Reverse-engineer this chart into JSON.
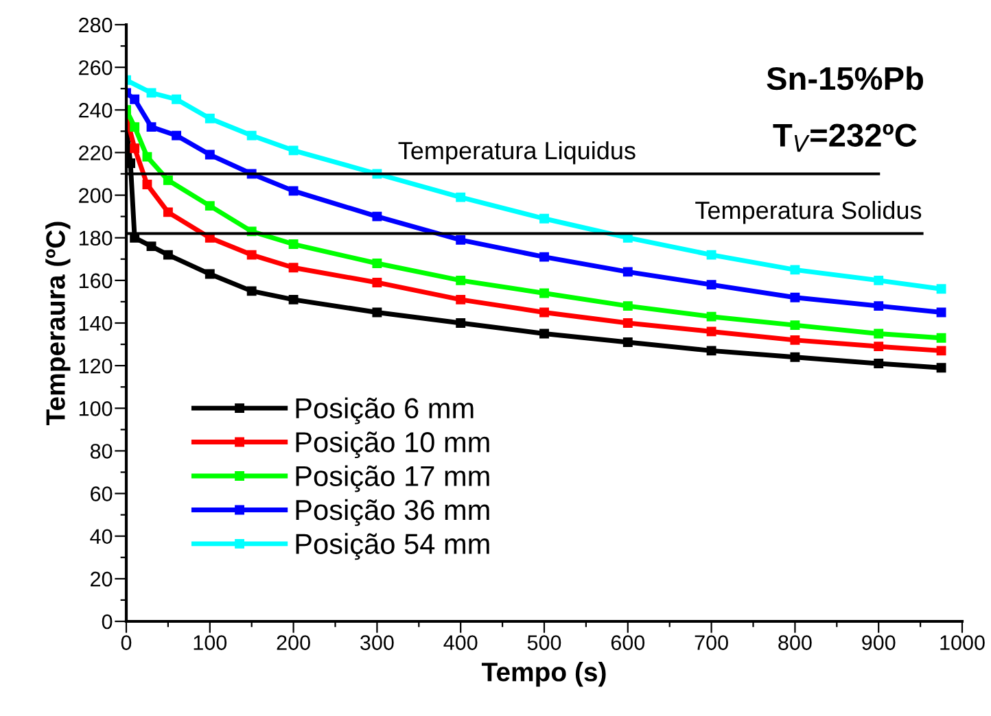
{
  "chart_data": {
    "type": "line",
    "xlabel": "Tempo (s)",
    "ylabel": "Temperaura (ºC)",
    "xlim": [
      0,
      1000
    ],
    "ylim": [
      0,
      280
    ],
    "xticks": [
      0,
      {
        "value": 50,
        "label": null
      },
      100,
      {
        "value": 150,
        "label": null
      },
      200,
      {
        "value": 250,
        "label": null
      },
      300,
      {
        "value": 350,
        "label": null
      },
      400,
      {
        "value": 450,
        "label": null
      },
      500,
      {
        "value": 550,
        "label": null
      },
      600,
      {
        "value": 650,
        "label": null
      },
      700,
      {
        "value": 750,
        "label": null
      },
      800,
      {
        "value": 850,
        "label": null
      },
      900,
      {
        "value": 950,
        "label": null
      },
      1000
    ],
    "yticks": [
      0,
      {
        "value": 10,
        "label": null
      },
      20,
      {
        "value": 30,
        "label": null
      },
      40,
      {
        "value": 50,
        "label": null
      },
      60,
      {
        "value": 70,
        "label": null
      },
      80,
      {
        "value": 90,
        "label": null
      },
      100,
      {
        "value": 110,
        "label": null
      },
      120,
      {
        "value": 130,
        "label": null
      },
      140,
      {
        "value": 150,
        "label": null
      },
      160,
      {
        "value": 170,
        "label": null
      },
      180,
      {
        "value": 190,
        "label": null
      },
      200,
      {
        "value": 210,
        "label": null
      },
      220,
      {
        "value": 230,
        "label": null
      },
      240,
      {
        "value": 250,
        "label": null
      },
      260,
      {
        "value": 270,
        "label": null
      },
      280
    ],
    "grid": false,
    "legend": "bottom left",
    "marker": "square",
    "line_style": "solid",
    "series": [
      {
        "name": "Posição 6 mm",
        "color": "#000000",
        "x": [
          0,
          5,
          10,
          30,
          50,
          100,
          150,
          200,
          300,
          400,
          500,
          600,
          700,
          800,
          900,
          975
        ],
        "values": [
          232,
          215,
          180,
          176,
          172,
          163,
          155,
          151,
          145,
          140,
          135,
          131,
          127,
          124,
          121,
          119
        ]
      },
      {
        "name": "Posição 10 mm",
        "color": "#ff0000",
        "x": [
          0,
          10,
          25,
          50,
          100,
          150,
          200,
          300,
          400,
          500,
          600,
          700,
          800,
          900,
          975
        ],
        "values": [
          237,
          222,
          205,
          192,
          180,
          172,
          166,
          159,
          151,
          145,
          140,
          136,
          132,
          129,
          127
        ]
      },
      {
        "name": "Posição 17 mm",
        "color": "#00ff00",
        "x": [
          0,
          10,
          25,
          50,
          100,
          150,
          200,
          300,
          400,
          500,
          600,
          700,
          800,
          900,
          975
        ],
        "values": [
          240,
          232,
          218,
          207,
          195,
          183,
          177,
          168,
          160,
          154,
          148,
          143,
          139,
          135,
          133
        ]
      },
      {
        "name": "Posição 36 mm",
        "color": "#0000ff",
        "x": [
          0,
          10,
          30,
          60,
          100,
          150,
          200,
          300,
          400,
          500,
          600,
          700,
          800,
          900,
          975
        ],
        "values": [
          248,
          245,
          232,
          228,
          219,
          210,
          202,
          190,
          179,
          171,
          164,
          158,
          152,
          148,
          145
        ]
      },
      {
        "name": "Posição 54 mm",
        "color": "#00ffff",
        "x": [
          0,
          30,
          60,
          100,
          150,
          200,
          300,
          400,
          500,
          600,
          700,
          800,
          900,
          975
        ],
        "values": [
          254,
          248,
          245,
          236,
          228,
          221,
          210,
          199,
          189,
          180,
          172,
          165,
          160,
          156
        ]
      },
      {
        "type": "line",
        "color": "#000000",
        "marker": "none",
        "x": [
          0,
          900
        ],
        "values": [
          210,
          210
        ]
      },
      {
        "type": "line",
        "color": "#000000",
        "marker": "none",
        "x": [
          0,
          952
        ],
        "values": [
          182,
          182
        ]
      }
    ],
    "annotations": [
      {
        "text": "Temperatura Liquidus",
        "x": 610,
        "y": 210
      },
      {
        "text": "Temperatura Solidus",
        "x": 952,
        "y": 182
      },
      "Sn-15%Pb",
      "T$_{V}$=232ºC"
    ]
  }
}
